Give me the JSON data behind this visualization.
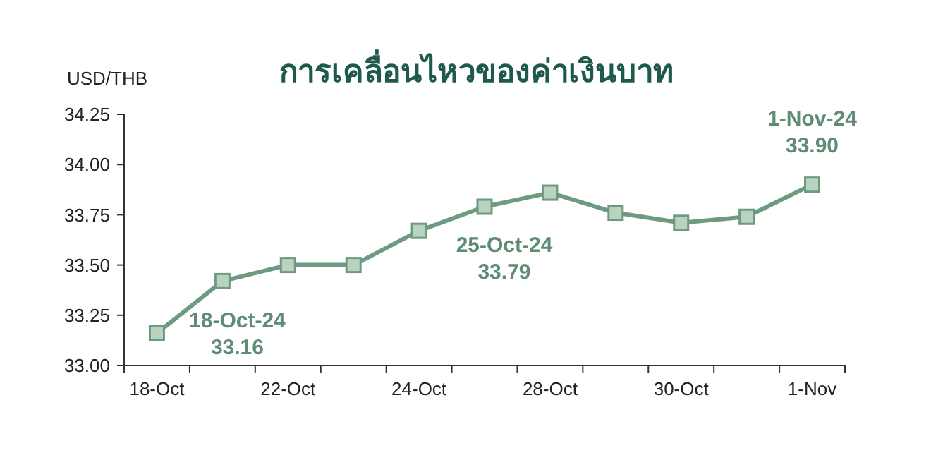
{
  "chart_data": {
    "type": "line",
    "title": "การเคลื่อนไหวของค่าเงินบาท",
    "ylabel": "USD/THB",
    "categories": [
      "18-Oct",
      null,
      "22-Oct",
      null,
      "24-Oct",
      null,
      "28-Oct",
      null,
      "30-Oct",
      null,
      "1-Nov"
    ],
    "series": [
      {
        "color": "#6f9a82",
        "values": [
          33.16,
          33.42,
          33.5,
          33.5,
          33.67,
          33.79,
          33.86,
          33.76,
          33.71,
          33.74,
          33.9
        ]
      }
    ],
    "ylim": [
      33.0,
      34.25
    ],
    "yticks": [
      {
        "value": 33.0,
        "label": "33.00"
      },
      {
        "value": 33.25,
        "label": "33.25"
      },
      {
        "value": 33.5,
        "label": "33.50"
      },
      {
        "value": 33.75,
        "label": "33.75"
      },
      {
        "value": 34.0,
        "label": "34.00"
      },
      {
        "value": 34.25,
        "label": "34.25"
      }
    ],
    "marker": "square",
    "grid": false,
    "annotations": [
      {
        "text": "18-Oct-24\n33.16",
        "x": "18-Oct",
        "y": 33.16
      },
      {
        "text": "25-Oct-24\n33.79",
        "y": 33.79
      },
      {
        "text": "1-Nov-24\n33.90",
        "x": "1-Nov",
        "y": 33.9
      }
    ]
  }
}
